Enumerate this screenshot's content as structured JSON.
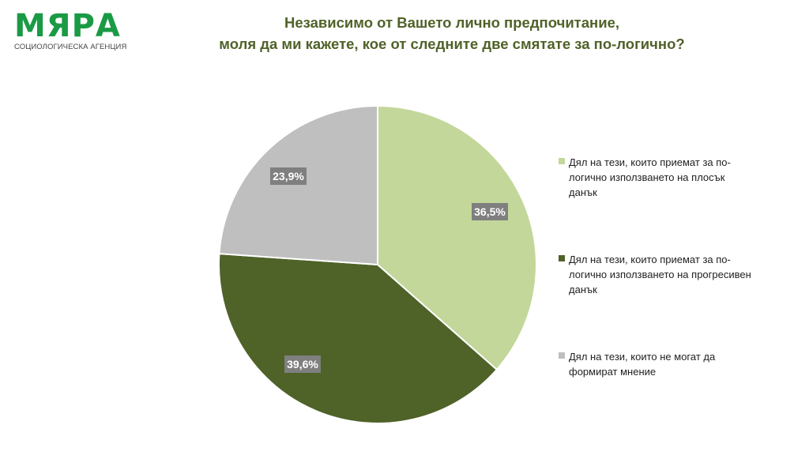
{
  "logo": {
    "name": "МЯРА",
    "subtitle": "СОЦИОЛОГИЧЕСКА АГЕНЦИЯ",
    "color": "#1a9a45"
  },
  "title_color": "#4f6228",
  "chart_data": {
    "type": "pie",
    "title": "Независимо от Вашето лично предпочитание, моля да ми кажете, кое от следните две смятате за по-логично?",
    "title_lines": [
      "Независимо от Вашето лично предпочитание,",
      "моля да ми кажете, кое от следните две смятате за по-логично?"
    ],
    "legend_position": "right",
    "slices": [
      {
        "label": "Дял на тези, които приемат за по-логично използването на плосък данък",
        "value": 36.5,
        "display": "36,5%",
        "color": "#c4d79b"
      },
      {
        "label": "Дял на тези, които приемат за по-логично използването на прогресивен данък",
        "value": 39.6,
        "display": "39,6%",
        "color": "#4f6228"
      },
      {
        "label": "Дял на тези, които не могат да формират мнение",
        "value": 23.9,
        "display": "23,9%",
        "color": "#bfbfbf"
      }
    ],
    "label_box_color": "#7f7f7f"
  }
}
